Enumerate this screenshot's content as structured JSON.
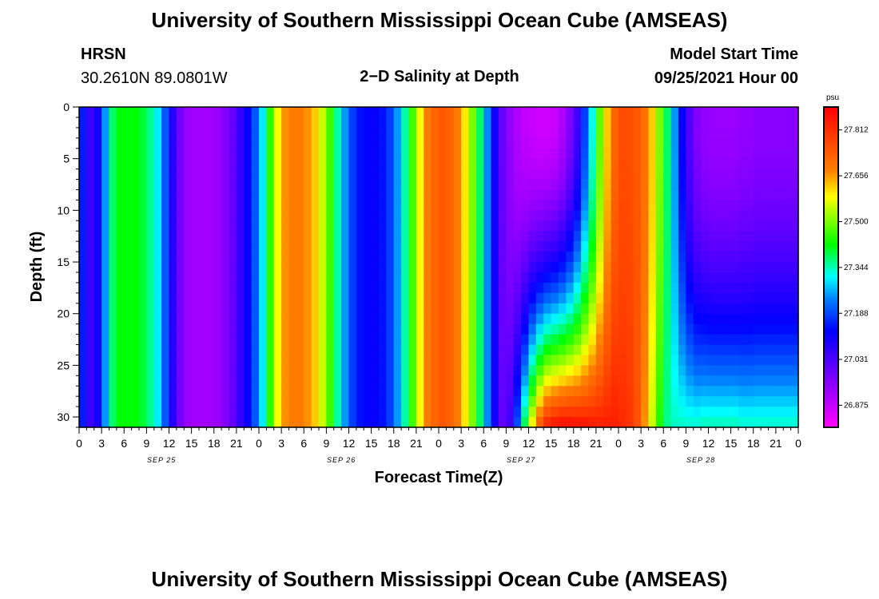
{
  "header": {
    "title_top": "University of Southern Mississippi Ocean Cube (AMSEAS)",
    "station": "HRSN",
    "location": "30.2610N  89.0801W",
    "plot_title": "2−D Salinity at Depth",
    "model_label": "Model Start Time",
    "model_time": "09/25/2021 Hour 00",
    "title_bottom": "University of Southern Mississippi Ocean Cube (AMSEAS)"
  },
  "chart_data": {
    "type": "heatmap",
    "title": "2-D Salinity at Depth",
    "xlabel": "Forecast Time(Z)",
    "ylabel": "Depth (ft)",
    "units": "psu",
    "ylim": [
      0,
      31
    ],
    "yticks": [
      "0",
      "5",
      "10",
      "15",
      "20",
      "25",
      "30"
    ],
    "ytick_values": [
      0,
      5,
      10,
      15,
      20,
      25,
      30
    ],
    "xlim_hours": [
      0,
      96
    ],
    "xtick_labels": [
      "0",
      "3",
      "6",
      "9",
      "12",
      "15",
      "18",
      "21",
      "0",
      "3",
      "6",
      "9",
      "12",
      "15",
      "18",
      "21",
      "0",
      "3",
      "6",
      "9",
      "12",
      "15",
      "18",
      "21",
      "0",
      "3",
      "6",
      "9",
      "12",
      "15",
      "18",
      "21",
      "0"
    ],
    "date_labels": [
      {
        "label": "SEP 25",
        "hour": 11
      },
      {
        "label": "SEP 26",
        "hour": 35
      },
      {
        "label": "SEP 27",
        "hour": 59
      },
      {
        "label": "SEP 28",
        "hour": 83
      }
    ],
    "colorbar": {
      "min": 26.8,
      "max": 27.89,
      "tick_labels": [
        "27.812",
        "27.656",
        "27.500",
        "27.344",
        "27.188",
        "27.031",
        "26.875"
      ],
      "tick_values": [
        27.812,
        27.656,
        27.5,
        27.344,
        27.188,
        27.031,
        26.875
      ]
    },
    "surface_series_hours": [
      0,
      1,
      2,
      3,
      4,
      5,
      6,
      7,
      8,
      9,
      10,
      11,
      12,
      13,
      14,
      15,
      16,
      17,
      18,
      19,
      20,
      21,
      22,
      23,
      24,
      25,
      26,
      27,
      28,
      29,
      30,
      31,
      32,
      33,
      34,
      35,
      36,
      37,
      38,
      39,
      40,
      41,
      42,
      43,
      44,
      45,
      46,
      47,
      48,
      49,
      50,
      51,
      52,
      53,
      54,
      55,
      56,
      57,
      58,
      59,
      60,
      61,
      62,
      63,
      64,
      65,
      66,
      67,
      68,
      69,
      70,
      71,
      72,
      73,
      74,
      75,
      76,
      77,
      78,
      79,
      80,
      81,
      82,
      83,
      84,
      85,
      86,
      87,
      88,
      89,
      90,
      91,
      92,
      93,
      94,
      95,
      96
    ],
    "surface_salinity": [
      27.15,
      27.05,
      27.1,
      27.25,
      27.38,
      27.42,
      27.42,
      27.42,
      27.4,
      27.36,
      27.3,
      27.2,
      27.08,
      26.98,
      26.93,
      26.92,
      26.92,
      26.92,
      26.93,
      26.96,
      27.0,
      27.06,
      27.12,
      27.2,
      27.3,
      27.45,
      27.58,
      27.66,
      27.68,
      27.68,
      27.66,
      27.62,
      27.55,
      27.46,
      27.35,
      27.25,
      27.18,
      27.14,
      27.12,
      27.12,
      27.14,
      27.18,
      27.25,
      27.35,
      27.46,
      27.58,
      27.68,
      27.72,
      27.74,
      27.72,
      27.68,
      27.6,
      27.5,
      27.38,
      27.24,
      27.1,
      27.0,
      26.94,
      26.9,
      26.88,
      26.87,
      26.86,
      26.86,
      26.87,
      26.9,
      26.96,
      27.05,
      27.18,
      27.32,
      27.48,
      27.62,
      27.72,
      27.76,
      27.76,
      27.74,
      27.7,
      27.62,
      27.5,
      27.38,
      27.25,
      27.12,
      27.02,
      26.96,
      26.94,
      26.93,
      26.93,
      26.93,
      26.93,
      26.94,
      26.94,
      26.95,
      26.95,
      26.95,
      26.95,
      26.95,
      26.95,
      26.95
    ],
    "bottom_salinity": [
      27.15,
      27.05,
      27.1,
      27.25,
      27.38,
      27.42,
      27.42,
      27.42,
      27.4,
      27.36,
      27.3,
      27.2,
      27.08,
      26.98,
      26.93,
      26.92,
      26.92,
      26.92,
      26.93,
      26.96,
      27.0,
      27.06,
      27.12,
      27.2,
      27.3,
      27.45,
      27.58,
      27.66,
      27.68,
      27.68,
      27.66,
      27.62,
      27.55,
      27.46,
      27.35,
      27.25,
      27.18,
      27.14,
      27.12,
      27.12,
      27.14,
      27.18,
      27.25,
      27.35,
      27.46,
      27.58,
      27.68,
      27.72,
      27.74,
      27.72,
      27.68,
      27.6,
      27.5,
      27.38,
      27.24,
      27.1,
      27.0,
      27.05,
      27.2,
      27.4,
      27.6,
      27.75,
      27.84,
      27.87,
      27.88,
      27.88,
      27.87,
      27.86,
      27.85,
      27.84,
      27.84,
      27.84,
      27.82,
      27.8,
      27.75,
      27.66,
      27.55,
      27.44,
      27.36,
      27.34,
      27.34,
      27.34,
      27.34,
      27.35,
      27.35,
      27.35,
      27.35,
      27.35,
      27.34,
      27.34,
      27.34,
      27.34,
      27.34,
      27.34,
      27.34,
      27.34,
      27.34
    ]
  }
}
